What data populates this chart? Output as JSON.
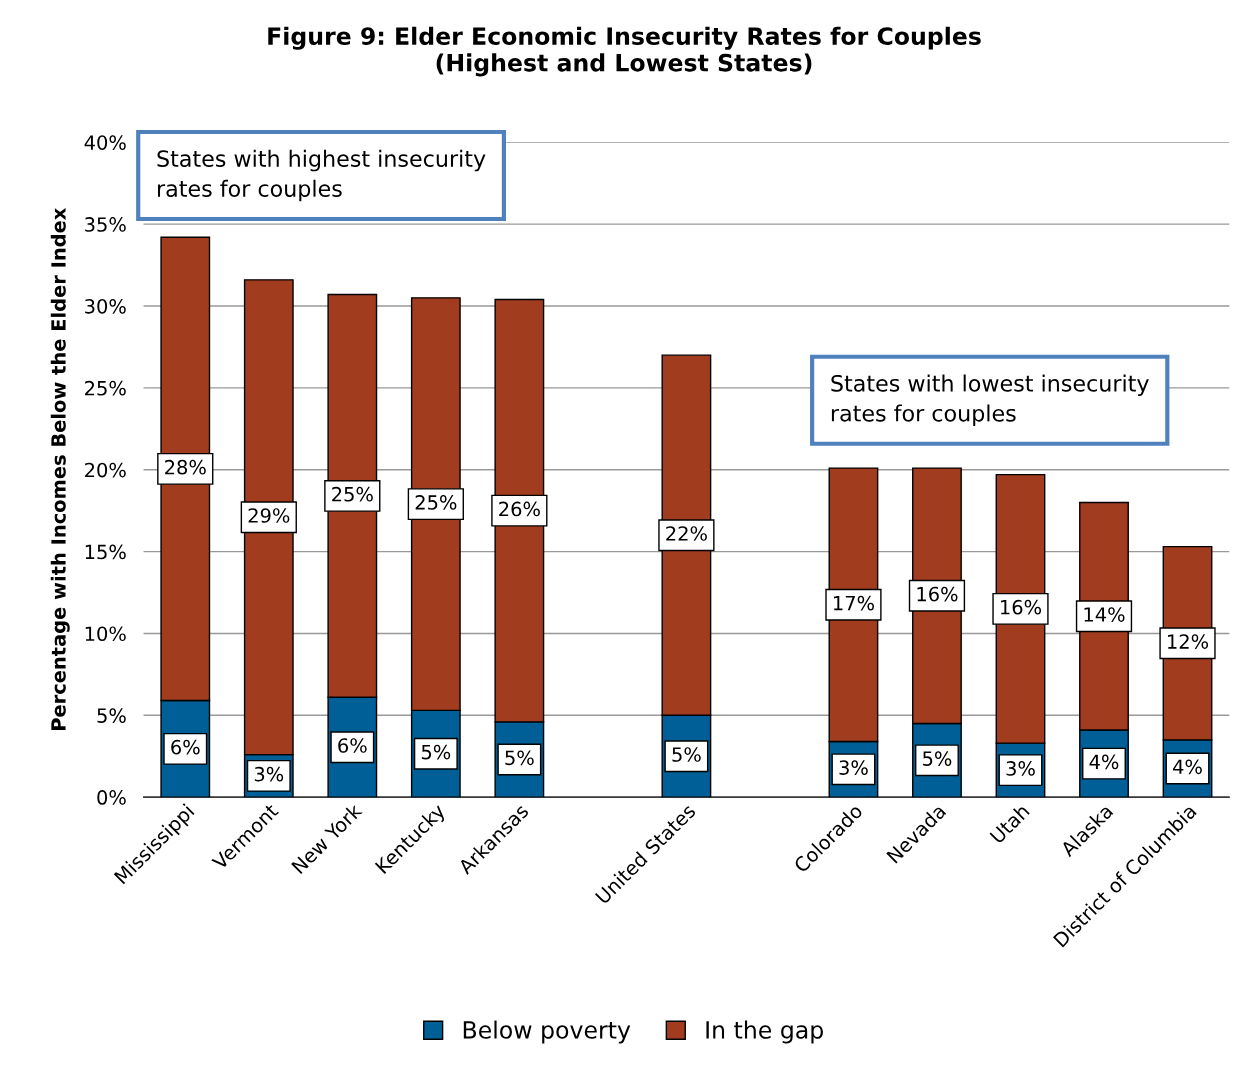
{
  "chart_data": {
    "type": "bar",
    "title": "Figure 9: Elder Economic Insecurity Rates for Couples\n(Highest and Lowest States)",
    "ylabel": "Percentage with Incomes Below the Elder Index",
    "categories": [
      "Mississippi",
      "Vermont",
      "New York",
      "Kentucky",
      "Arkansas",
      null,
      "United States",
      null,
      "Colorado",
      "Nevada",
      "Utah",
      "Alaska",
      "District of Columbia"
    ],
    "stacked": true,
    "series": [
      {
        "name": "Below poverty",
        "color": "#005f96",
        "values": [
          5.9,
          2.6,
          6.1,
          5.3,
          4.6,
          null,
          5.0,
          null,
          3.4,
          4.5,
          3.3,
          4.1,
          3.5
        ],
        "value_labels": [
          "6%",
          "3%",
          "6%",
          "5%",
          "5%",
          null,
          "5%",
          null,
          "3%",
          "5%",
          "3%",
          "4%",
          "4%"
        ]
      },
      {
        "name": "In the gap",
        "color": "#a23c1e",
        "values": [
          28.3,
          29.0,
          24.6,
          25.2,
          25.8,
          null,
          22.0,
          null,
          16.7,
          15.6,
          16.4,
          13.9,
          11.8
        ],
        "value_labels": [
          "28%",
          "29%",
          "25%",
          "25%",
          "26%",
          null,
          "22%",
          null,
          "17%",
          "16%",
          "16%",
          "14%",
          "12%"
        ]
      }
    ],
    "ylim": [
      0,
      40
    ],
    "yticks": [
      {
        "value": 0,
        "label": "0%"
      },
      {
        "value": 5,
        "label": "5%"
      },
      {
        "value": 10,
        "label": "10%"
      },
      {
        "value": 15,
        "label": "15%"
      },
      {
        "value": 20,
        "label": "20%"
      },
      {
        "value": 25,
        "label": "25%"
      },
      {
        "value": 30,
        "label": "30%"
      },
      {
        "value": 35,
        "label": "35%"
      },
      {
        "value": 40,
        "label": "40%"
      }
    ],
    "grid": "y",
    "legend": "bottom",
    "annotations": [
      "States with highest insecurity\nrates for couples",
      "States with lowest insecurity\nrates for couples"
    ]
  }
}
